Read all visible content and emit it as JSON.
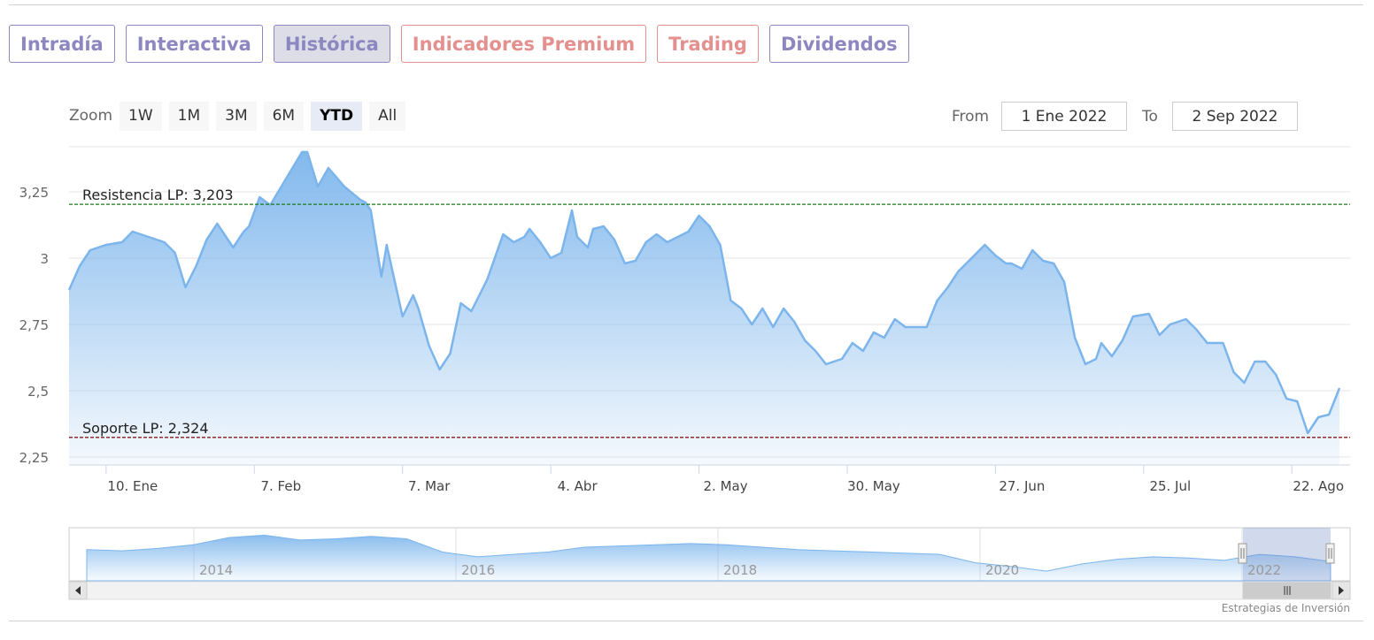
{
  "tabs": [
    {
      "label": "Intradía",
      "state": "normal"
    },
    {
      "label": "Interactiva",
      "state": "normal"
    },
    {
      "label": "Histórica",
      "state": "active"
    },
    {
      "label": "Indicadores Premium",
      "state": "premium"
    },
    {
      "label": "Trading",
      "state": "premium"
    },
    {
      "label": "Dividendos",
      "state": "normal"
    }
  ],
  "zoom": {
    "label": "Zoom",
    "buttons": [
      {
        "label": "1W",
        "active": false
      },
      {
        "label": "1M",
        "active": false
      },
      {
        "label": "3M",
        "active": false
      },
      {
        "label": "6M",
        "active": false
      },
      {
        "label": "YTD",
        "active": true
      },
      {
        "label": "All",
        "active": false
      }
    ]
  },
  "range": {
    "from_label": "From",
    "from_value": "1 Ene 2022",
    "to_label": "To",
    "to_value": "2 Sep 2022"
  },
  "credit": "Estrategias de Inversión",
  "colors": {
    "line": "#7cb5ec",
    "resistance": "#1a7a1a",
    "support": "#8b1a1a",
    "tab_text": "#8c87c0",
    "premium_text": "#e3908f"
  },
  "chart_data": {
    "type": "area",
    "ylim": [
      2.22,
      3.42
    ],
    "yticks": [
      {
        "v": 2.25,
        "label": "2,25"
      },
      {
        "v": 2.5,
        "label": "2,5"
      },
      {
        "v": 2.75,
        "label": "2,75"
      },
      {
        "v": 3,
        "label": "3"
      },
      {
        "v": 3.25,
        "label": "3,25"
      }
    ],
    "xlim": [
      "2022-01-03",
      "2022-09-02"
    ],
    "xticks": [
      {
        "date": "2022-01-10",
        "label": "10. Ene"
      },
      {
        "date": "2022-02-07",
        "label": "7. Feb"
      },
      {
        "date": "2022-03-07",
        "label": "7. Mar"
      },
      {
        "date": "2022-04-04",
        "label": "4. Abr"
      },
      {
        "date": "2022-05-02",
        "label": "2. May"
      },
      {
        "date": "2022-05-30",
        "label": "30. May"
      },
      {
        "date": "2022-06-27",
        "label": "27. Jun"
      },
      {
        "date": "2022-07-25",
        "label": "25. Jul"
      },
      {
        "date": "2022-08-22",
        "label": "22. Ago"
      }
    ],
    "series": [
      {
        "points": [
          [
            "2022-01-03",
            2.88
          ],
          [
            "2022-01-05",
            2.97
          ],
          [
            "2022-01-07",
            3.03
          ],
          [
            "2022-01-10",
            3.05
          ],
          [
            "2022-01-13",
            3.06
          ],
          [
            "2022-01-15",
            3.1
          ],
          [
            "2022-01-18",
            3.08
          ],
          [
            "2022-01-21",
            3.06
          ],
          [
            "2022-01-23",
            3.02
          ],
          [
            "2022-01-25",
            2.89
          ],
          [
            "2022-01-27",
            2.97
          ],
          [
            "2022-01-29",
            3.07
          ],
          [
            "2022-01-31",
            3.13
          ],
          [
            "2022-02-03",
            3.04
          ],
          [
            "2022-02-05",
            3.1
          ],
          [
            "2022-02-06",
            3.12
          ],
          [
            "2022-02-08",
            3.23
          ],
          [
            "2022-02-10",
            3.2
          ],
          [
            "2022-02-13",
            3.3
          ],
          [
            "2022-02-16",
            3.4
          ],
          [
            "2022-02-17",
            3.4
          ],
          [
            "2022-02-19",
            3.27
          ],
          [
            "2022-02-21",
            3.34
          ],
          [
            "2022-02-24",
            3.27
          ],
          [
            "2022-02-27",
            3.22
          ],
          [
            "2022-02-28",
            3.21
          ],
          [
            "2022-03-01",
            3.18
          ],
          [
            "2022-03-03",
            2.93
          ],
          [
            "2022-03-04",
            3.05
          ],
          [
            "2022-03-07",
            2.78
          ],
          [
            "2022-03-09",
            2.86
          ],
          [
            "2022-03-10",
            2.81
          ],
          [
            "2022-03-12",
            2.67
          ],
          [
            "2022-03-14",
            2.58
          ],
          [
            "2022-03-16",
            2.64
          ],
          [
            "2022-03-18",
            2.83
          ],
          [
            "2022-03-20",
            2.8
          ],
          [
            "2022-03-23",
            2.92
          ],
          [
            "2022-03-26",
            3.09
          ],
          [
            "2022-03-28",
            3.06
          ],
          [
            "2022-03-30",
            3.08
          ],
          [
            "2022-03-31",
            3.11
          ],
          [
            "2022-04-02",
            3.06
          ],
          [
            "2022-04-04",
            3.0
          ],
          [
            "2022-04-06",
            3.02
          ],
          [
            "2022-04-08",
            3.18
          ],
          [
            "2022-04-09",
            3.08
          ],
          [
            "2022-04-11",
            3.04
          ],
          [
            "2022-04-12",
            3.11
          ],
          [
            "2022-04-14",
            3.12
          ],
          [
            "2022-04-16",
            3.07
          ],
          [
            "2022-04-18",
            2.98
          ],
          [
            "2022-04-20",
            2.99
          ],
          [
            "2022-04-22",
            3.06
          ],
          [
            "2022-04-24",
            3.09
          ],
          [
            "2022-04-26",
            3.06
          ],
          [
            "2022-04-28",
            3.08
          ],
          [
            "2022-04-30",
            3.1
          ],
          [
            "2022-05-02",
            3.16
          ],
          [
            "2022-05-04",
            3.12
          ],
          [
            "2022-05-06",
            3.05
          ],
          [
            "2022-05-08",
            2.84
          ],
          [
            "2022-05-10",
            2.81
          ],
          [
            "2022-05-12",
            2.75
          ],
          [
            "2022-05-14",
            2.81
          ],
          [
            "2022-05-16",
            2.74
          ],
          [
            "2022-05-18",
            2.81
          ],
          [
            "2022-05-20",
            2.76
          ],
          [
            "2022-05-22",
            2.69
          ],
          [
            "2022-05-24",
            2.65
          ],
          [
            "2022-05-26",
            2.6
          ],
          [
            "2022-05-29",
            2.62
          ],
          [
            "2022-05-31",
            2.68
          ],
          [
            "2022-06-02",
            2.65
          ],
          [
            "2022-06-04",
            2.72
          ],
          [
            "2022-06-06",
            2.7
          ],
          [
            "2022-06-08",
            2.77
          ],
          [
            "2022-06-10",
            2.74
          ],
          [
            "2022-06-14",
            2.74
          ],
          [
            "2022-06-16",
            2.84
          ],
          [
            "2022-06-18",
            2.89
          ],
          [
            "2022-06-20",
            2.95
          ],
          [
            "2022-06-23",
            3.01
          ],
          [
            "2022-06-25",
            3.05
          ],
          [
            "2022-06-27",
            3.01
          ],
          [
            "2022-06-29",
            2.98
          ],
          [
            "2022-06-30",
            2.98
          ],
          [
            "2022-07-02",
            2.96
          ],
          [
            "2022-07-04",
            3.03
          ],
          [
            "2022-07-06",
            2.99
          ],
          [
            "2022-07-08",
            2.98
          ],
          [
            "2022-07-10",
            2.91
          ],
          [
            "2022-07-12",
            2.7
          ],
          [
            "2022-07-14",
            2.6
          ],
          [
            "2022-07-16",
            2.62
          ],
          [
            "2022-07-17",
            2.68
          ],
          [
            "2022-07-19",
            2.63
          ],
          [
            "2022-07-21",
            2.69
          ],
          [
            "2022-07-23",
            2.78
          ],
          [
            "2022-07-26",
            2.79
          ],
          [
            "2022-07-28",
            2.71
          ],
          [
            "2022-07-30",
            2.75
          ],
          [
            "2022-08-02",
            2.77
          ],
          [
            "2022-08-04",
            2.73
          ],
          [
            "2022-08-06",
            2.68
          ],
          [
            "2022-08-09",
            2.68
          ],
          [
            "2022-08-11",
            2.57
          ],
          [
            "2022-08-13",
            2.53
          ],
          [
            "2022-08-15",
            2.61
          ],
          [
            "2022-08-17",
            2.61
          ],
          [
            "2022-08-19",
            2.56
          ],
          [
            "2022-08-21",
            2.47
          ],
          [
            "2022-08-23",
            2.46
          ],
          [
            "2022-08-25",
            2.34
          ],
          [
            "2022-08-27",
            2.4
          ],
          [
            "2022-08-29",
            2.41
          ],
          [
            "2022-08-31",
            2.51
          ]
        ]
      }
    ],
    "annotations": [
      {
        "label": "Resistencia LP: 3,203",
        "value": 3.203,
        "color": "#1a7a1a"
      },
      {
        "label": "Soporte LP: 2,324",
        "value": 2.324,
        "color": "#8b1a1a"
      }
    ],
    "navigator": {
      "labels": [
        "2014",
        "2016",
        "2018",
        "2020",
        "2022"
      ],
      "values": [
        2.9,
        2.85,
        2.95,
        3.1,
        3.4,
        3.5,
        3.3,
        3.35,
        3.45,
        3.35,
        2.8,
        2.6,
        2.7,
        2.8,
        3.0,
        3.05,
        3.1,
        3.15,
        3.1,
        3.0,
        2.9,
        2.85,
        2.8,
        2.75,
        2.7,
        2.35,
        2.2,
        2.0,
        2.3,
        2.5,
        2.6,
        2.55,
        2.45,
        2.7,
        2.6,
        2.4
      ]
    }
  }
}
